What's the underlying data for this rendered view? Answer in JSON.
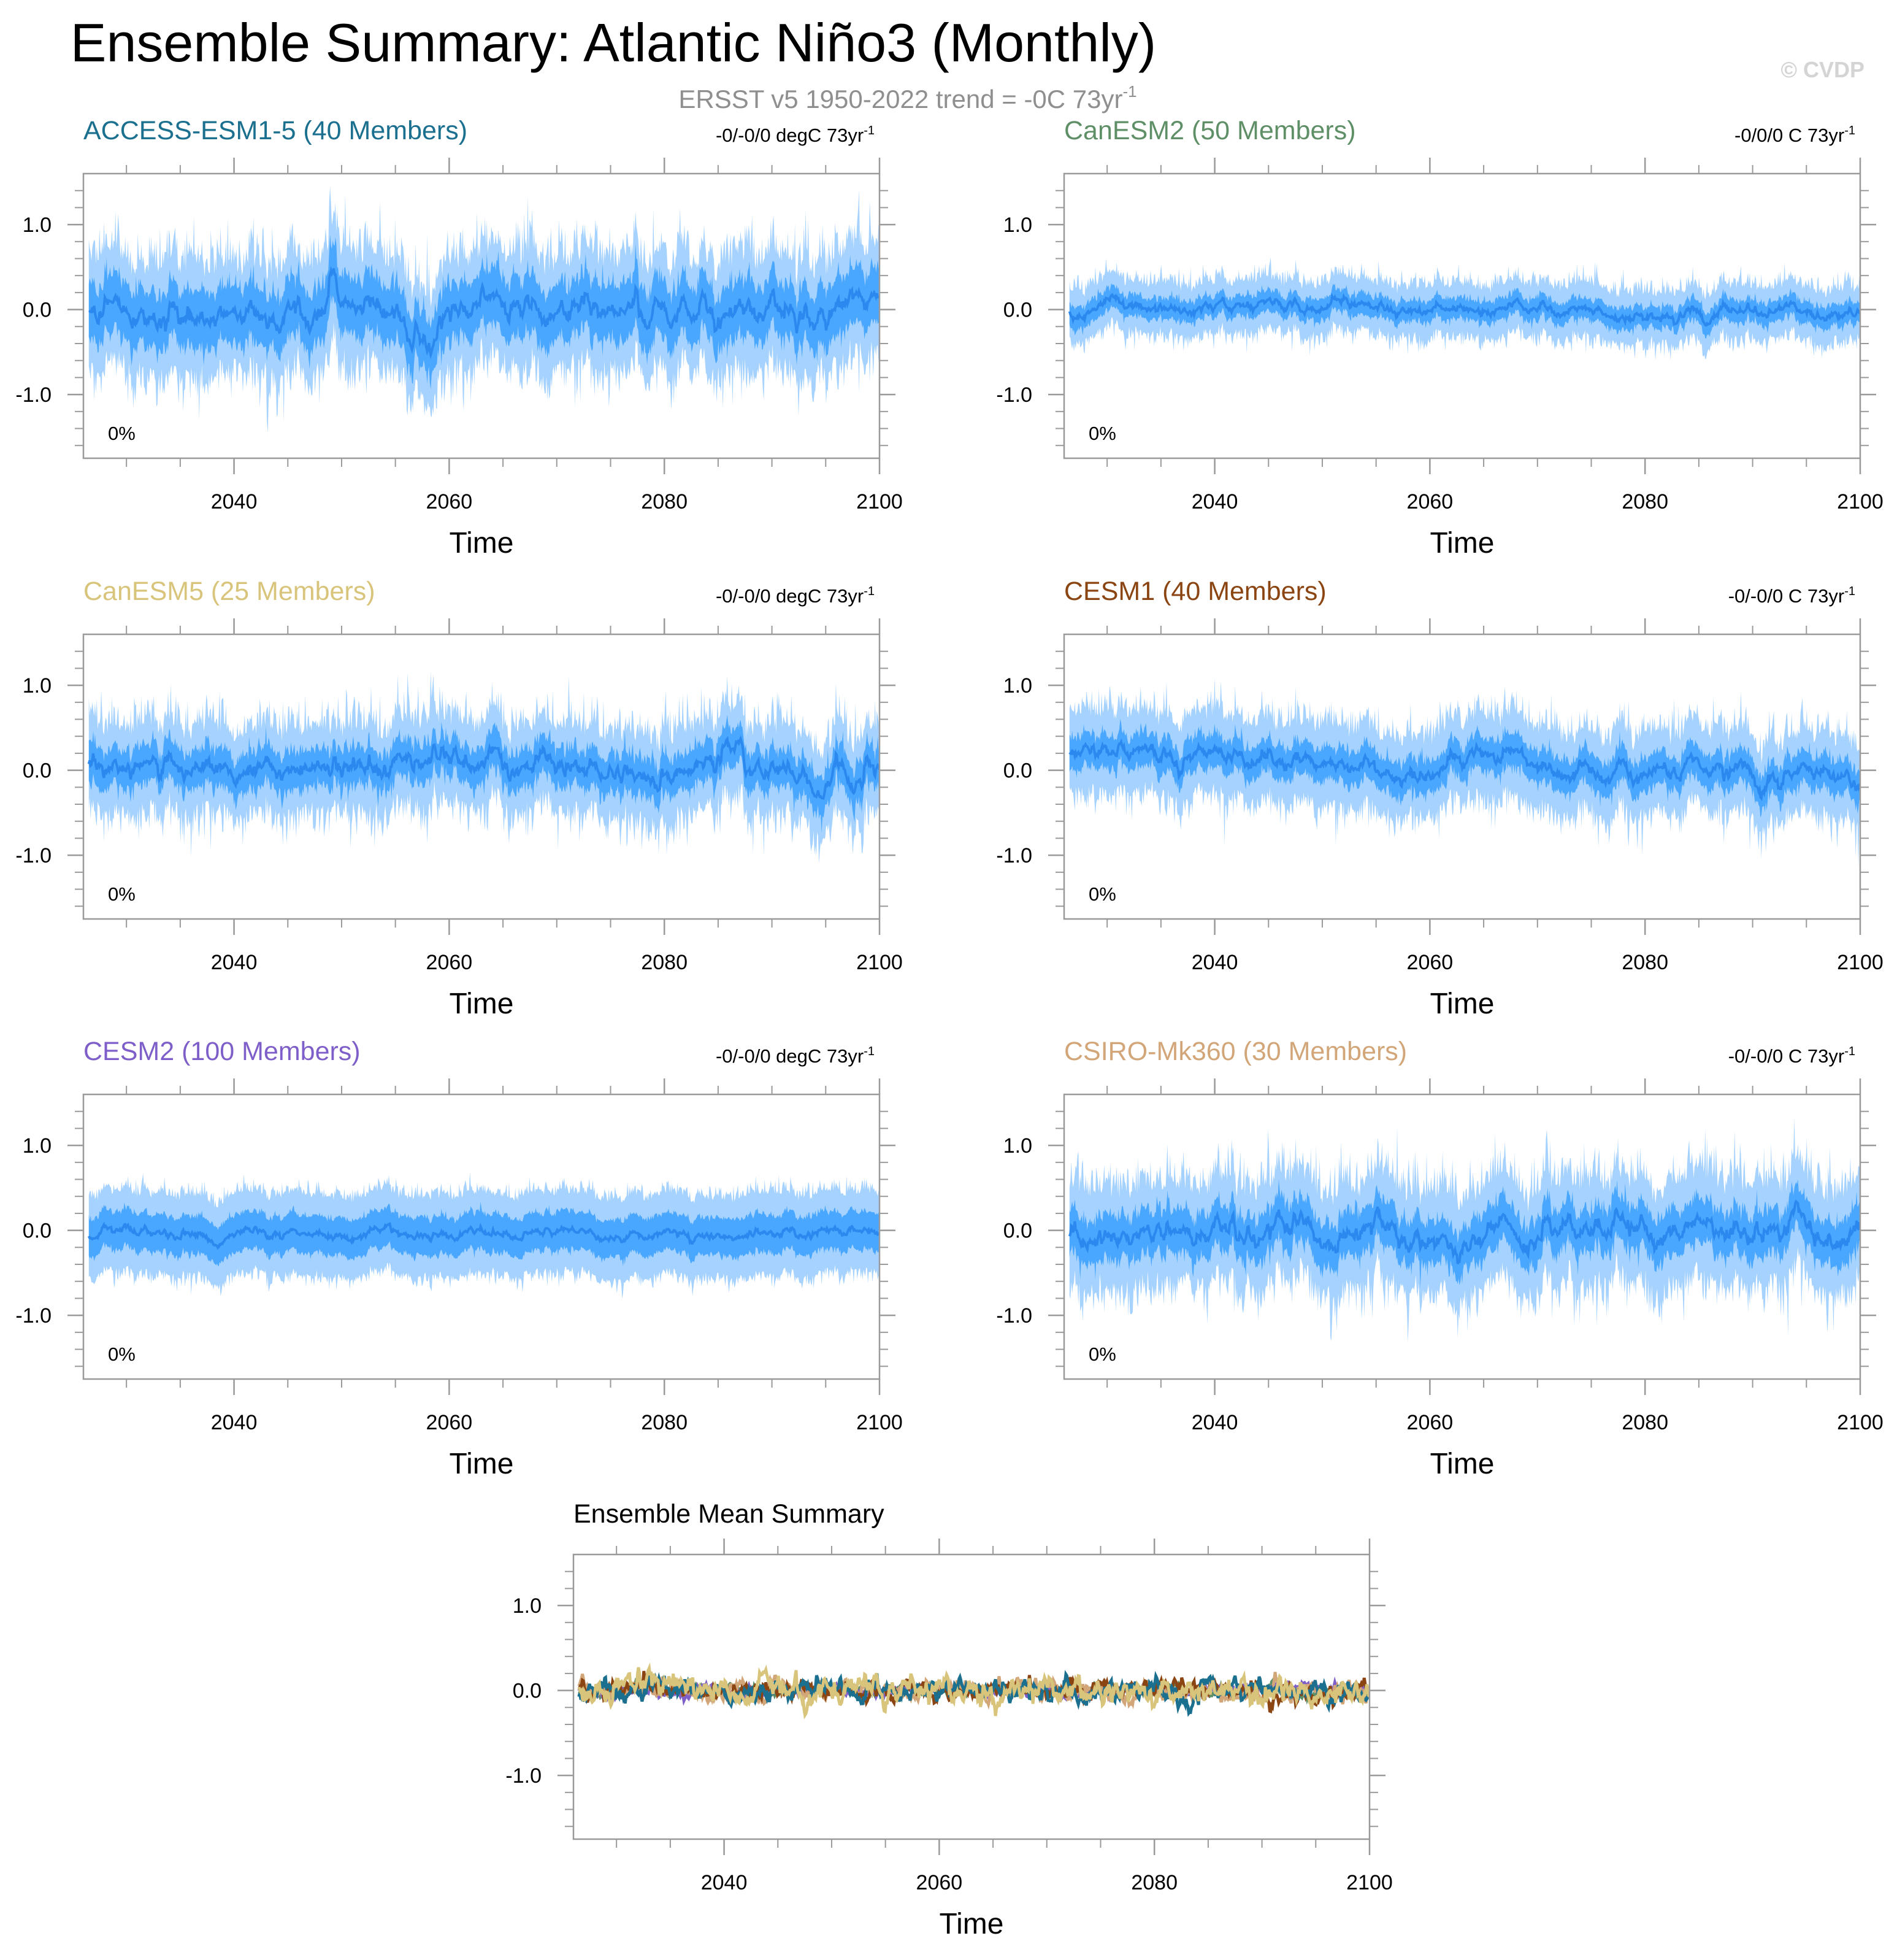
{
  "figure": {
    "title": "Ensemble Summary: Atlantic Niño3 (Monthly)",
    "subtitle_main": "ERSST v5 1950-2022 trend = -0C 73yr",
    "subtitle_sup": "-1",
    "copyright": "© CVDP"
  },
  "colors": {
    "band_outer": "#a6d2ff",
    "band_inner": "#3fa2ff",
    "mean_line": "#2b88ee",
    "axis": "#9a9a9a"
  },
  "chart_data": [
    {
      "type": "area",
      "name": "ACCESS-ESM1-5 (40 Members)",
      "color": "#1b6f8f",
      "trend_label": "-0/-0/0 degC 73yr",
      "trend_sup": "-1",
      "pct_label": "0%",
      "xlabel": "Time",
      "xlim": [
        2026,
        2100
      ],
      "ylim": [
        -1.75,
        1.6
      ],
      "xticks": [
        2040,
        2060,
        2080,
        2100
      ],
      "yticks": [
        1.0,
        0.0,
        -1.0
      ],
      "ytick_labels": [
        "1.0",
        "0.0",
        "-1.0"
      ],
      "mean_start": 0.0,
      "mean_end": 0.0,
      "inner_halfwidth": 0.27,
      "outer_halfwidth": 0.55,
      "noise": 0.14,
      "seed": 11
    },
    {
      "type": "area",
      "name": "CanESM2 (50 Members)",
      "color": "#5e8f66",
      "trend_label": "-0/0/0 C 73yr",
      "trend_sup": "-1",
      "pct_label": "0%",
      "xlabel": "Time",
      "xlim": [
        2026,
        2100
      ],
      "ylim": [
        -1.75,
        1.6
      ],
      "xticks": [
        2040,
        2060,
        2080,
        2100
      ],
      "yticks": [
        1.0,
        0.0,
        -1.0
      ],
      "ytick_labels": [
        "1.0",
        "0.0",
        "-1.0"
      ],
      "mean_start": 0.0,
      "mean_end": -0.02,
      "inner_halfwidth": 0.1,
      "outer_halfwidth": 0.26,
      "noise": 0.06,
      "seed": 23
    },
    {
      "type": "area",
      "name": "CanESM5 (25 Members)",
      "color": "#d8c47a",
      "trend_label": "-0/-0/0 degC 73yr",
      "trend_sup": "-1",
      "pct_label": "0%",
      "xlabel": "Time",
      "xlim": [
        2026,
        2100
      ],
      "ylim": [
        -1.75,
        1.6
      ],
      "xticks": [
        2040,
        2060,
        2080,
        2100
      ],
      "yticks": [
        1.0,
        0.0,
        -1.0
      ],
      "ytick_labels": [
        "1.0",
        "0.0",
        "-1.0"
      ],
      "mean_start": 0.12,
      "mean_end": -0.08,
      "inner_halfwidth": 0.17,
      "outer_halfwidth": 0.42,
      "noise": 0.12,
      "seed": 37
    },
    {
      "type": "area",
      "name": "CESM1 (40 Members)",
      "color": "#8b4513",
      "trend_label": "-0/-0/0 C 73yr",
      "trend_sup": "-1",
      "pct_label": "0%",
      "xlabel": "Time",
      "xlim": [
        2026,
        2100
      ],
      "ylim": [
        -1.75,
        1.6
      ],
      "xticks": [
        2040,
        2060,
        2080,
        2100
      ],
      "yticks": [
        1.0,
        0.0,
        -1.0
      ],
      "ytick_labels": [
        "1.0",
        "0.0",
        "-1.0"
      ],
      "mean_start": 0.16,
      "mean_end": -0.04,
      "inner_halfwidth": 0.15,
      "outer_halfwidth": 0.4,
      "noise": 0.1,
      "seed": 51
    },
    {
      "type": "area",
      "name": "CESM2 (100 Members)",
      "color": "#7e5fc9",
      "trend_label": "-0/-0/0 degC 73yr",
      "trend_sup": "-1",
      "pct_label": "0%",
      "xlabel": "Time",
      "xlim": [
        2026,
        2100
      ],
      "ylim": [
        -1.75,
        1.6
      ],
      "xticks": [
        2040,
        2060,
        2080,
        2100
      ],
      "yticks": [
        1.0,
        0.0,
        -1.0
      ],
      "ytick_labels": [
        "1.0",
        "0.0",
        "-1.0"
      ],
      "mean_start": -0.05,
      "mean_end": -0.03,
      "inner_halfwidth": 0.2,
      "outer_halfwidth": 0.44,
      "noise": 0.05,
      "seed": 67
    },
    {
      "type": "area",
      "name": "CSIRO-Mk360 (30 Members)",
      "color": "#d2a679",
      "trend_label": "-0/-0/0 C 73yr",
      "trend_sup": "-1",
      "pct_label": "0%",
      "xlabel": "Time",
      "xlim": [
        2026,
        2100
      ],
      "ylim": [
        -1.75,
        1.6
      ],
      "xticks": [
        2040,
        2060,
        2080,
        2100
      ],
      "yticks": [
        1.0,
        0.0,
        -1.0
      ],
      "ytick_labels": [
        "1.0",
        "0.0",
        "-1.0"
      ],
      "mean_start": 0.0,
      "mean_end": -0.03,
      "inner_halfwidth": 0.2,
      "outer_halfwidth": 0.5,
      "noise": 0.13,
      "seed": 79
    },
    {
      "type": "line",
      "name": "Ensemble Mean Summary",
      "color": "#000000",
      "xlabel": "Time",
      "xlim": [
        2026,
        2100
      ],
      "ylim": [
        -1.75,
        1.6
      ],
      "xticks": [
        2040,
        2060,
        2080,
        2100
      ],
      "yticks": [
        1.0,
        0.0,
        -1.0
      ],
      "ytick_labels": [
        "1.0",
        "0.0",
        "-1.0"
      ],
      "series": [
        {
          "name": "CanESM2",
          "color": "#5e8f66",
          "amplitude": 0.05,
          "seed": 3
        },
        {
          "name": "CESM2",
          "color": "#7e5fc9",
          "amplitude": 0.05,
          "seed": 5
        },
        {
          "name": "CSIRO-Mk360",
          "color": "#d2a679",
          "amplitude": 0.08,
          "seed": 7
        },
        {
          "name": "CESM1",
          "color": "#8b4513",
          "amplitude": 0.09,
          "seed": 9
        },
        {
          "name": "ACCESS-ESM1-5",
          "color": "#1b6f8f",
          "amplitude": 0.1,
          "seed": 13
        },
        {
          "name": "CanESM5",
          "color": "#d8c47a",
          "amplitude": 0.12,
          "seed": 17
        }
      ]
    }
  ]
}
